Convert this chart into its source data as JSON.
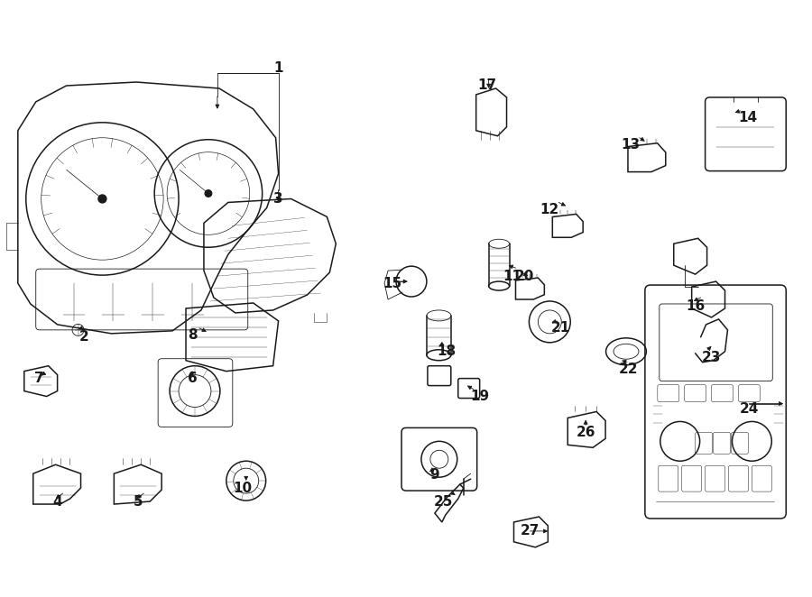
{
  "bg_color": "#ffffff",
  "line_color": "#1a1a1a",
  "figsize": [
    9.0,
    6.62
  ],
  "dpi": 100,
  "lw_main": 1.1,
  "lw_thin": 0.6
}
